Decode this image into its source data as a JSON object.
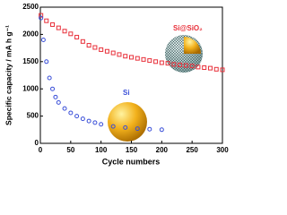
{
  "chart_data": {
    "type": "scatter",
    "x_label": "Cycle numbers",
    "y_label": "Specific capacity / mA h g⁻¹",
    "annotations": [
      "Si@SiO₂",
      "Si"
    ],
    "xlim": [
      0,
      300
    ],
    "xticks": [
      0,
      50,
      100,
      150,
      200,
      250,
      300
    ],
    "ylim": [
      0,
      2500
    ],
    "yticks": [
      0,
      500,
      1000,
      1500,
      2000,
      2500
    ],
    "series": [
      {
        "name": "Si@SiO₂",
        "color": "#e8303a",
        "marker": "square",
        "x": [
          1,
          10,
          20,
          30,
          40,
          50,
          60,
          70,
          80,
          90,
          100,
          110,
          120,
          130,
          140,
          150,
          160,
          170,
          180,
          190,
          200,
          210,
          220,
          230,
          240,
          250,
          260,
          270,
          280,
          290,
          300
        ],
        "values": [
          2350,
          2250,
          2180,
          2120,
          2060,
          2010,
          1950,
          1870,
          1800,
          1760,
          1720,
          1690,
          1660,
          1630,
          1600,
          1580,
          1560,
          1540,
          1520,
          1500,
          1480,
          1470,
          1450,
          1440,
          1430,
          1420,
          1400,
          1390,
          1380,
          1360,
          1350
        ]
      },
      {
        "name": "Si",
        "color": "#3a4fd8",
        "marker": "circle",
        "x": [
          1,
          5,
          10,
          15,
          20,
          25,
          30,
          40,
          50,
          60,
          70,
          80,
          90,
          100,
          120,
          140,
          160,
          180,
          200
        ],
        "values": [
          2300,
          1900,
          1500,
          1200,
          1000,
          850,
          750,
          640,
          560,
          500,
          450,
          410,
          380,
          350,
          310,
          290,
          270,
          260,
          250
        ]
      }
    ]
  }
}
